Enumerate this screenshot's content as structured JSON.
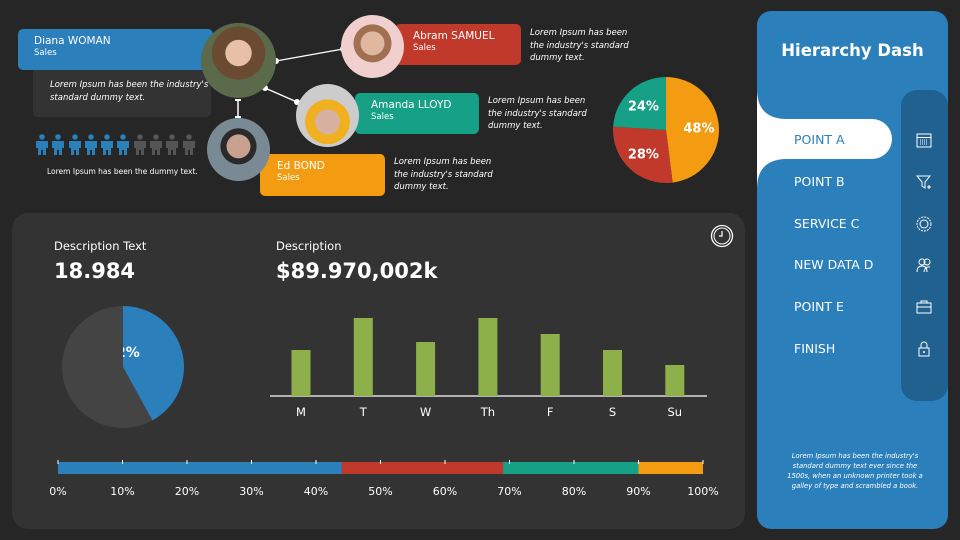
{
  "people": [
    {
      "name": "Diana WOMAN",
      "role": "Sales",
      "color": "#2b7fbb"
    },
    {
      "name": "Abram SAMUEL",
      "role": "Sales",
      "color": "#c0392b",
      "desc": "Lorem Ipsum has been the industry's standard dummy text."
    },
    {
      "name": "Amanda LLOYD",
      "role": "Sales",
      "color": "#16a085",
      "desc": "Lorem Ipsum has been the industry's standard dummy text."
    },
    {
      "name": "Ed BOND",
      "role": "Sales",
      "color": "#f39c12",
      "desc": "Lorem Ipsum has been the industry's standard dummy text."
    }
  ],
  "diana_desc": "Lorem Ipsum has been the industry's standard dummy text.",
  "people_icons": {
    "filled": 6,
    "total": 10,
    "caption": "Lorem Ipsum has been the dummy text."
  },
  "chart_data": [
    {
      "type": "pie",
      "slices": [
        {
          "label": "48%",
          "value": 48,
          "color": "#f39c12"
        },
        {
          "label": "28%",
          "value": 28,
          "color": "#c0392b"
        },
        {
          "label": "24%",
          "value": 24,
          "color": "#16a085"
        }
      ]
    },
    {
      "type": "pie",
      "title": "Description Text",
      "slices": [
        {
          "label": "42%",
          "value": 42,
          "color": "#2b7fbb"
        },
        {
          "label": "",
          "value": 58,
          "color": "#444444"
        }
      ]
    },
    {
      "type": "bar",
      "title": "Description",
      "categories": [
        "M",
        "T",
        "W",
        "Th",
        "F",
        "S",
        "Su"
      ],
      "values": [
        46,
        78,
        54,
        78,
        62,
        46,
        31
      ],
      "color": "#8db04a"
    },
    {
      "type": "bar",
      "orientation": "horizontal-stacked",
      "ticks": [
        "0%",
        "10%",
        "20%",
        "30%",
        "40%",
        "50%",
        "60%",
        "70%",
        "80%",
        "90%",
        "100%"
      ],
      "segments": [
        {
          "value": 44,
          "color": "#2b7fbb"
        },
        {
          "value": 25,
          "color": "#c0392b"
        },
        {
          "value": 21,
          "color": "#16a085"
        },
        {
          "value": 10,
          "color": "#f39c12"
        }
      ]
    }
  ],
  "panel": {
    "left_label": "Description Text",
    "left_value": "18.984",
    "right_label": "Description",
    "right_value": "$89.970,002k"
  },
  "sidebar": {
    "title": "Hierarchy Dash",
    "items": [
      {
        "label": "POINT A",
        "icon": "calendar-icon",
        "active": true
      },
      {
        "label": "POINT B",
        "icon": "funnel-icon"
      },
      {
        "label": "SERVICE C",
        "icon": "gear-icon"
      },
      {
        "label": "NEW DATA D",
        "icon": "users-icon"
      },
      {
        "label": "POINT E",
        "icon": "toolbox-icon"
      },
      {
        "label": "FINISH",
        "icon": "lock-icon"
      }
    ],
    "footer": "Lorem Ipsum has been the industry's standard dummy text ever since the 1500s, when an unknown printer took a galley of type and scrambled  a book."
  }
}
